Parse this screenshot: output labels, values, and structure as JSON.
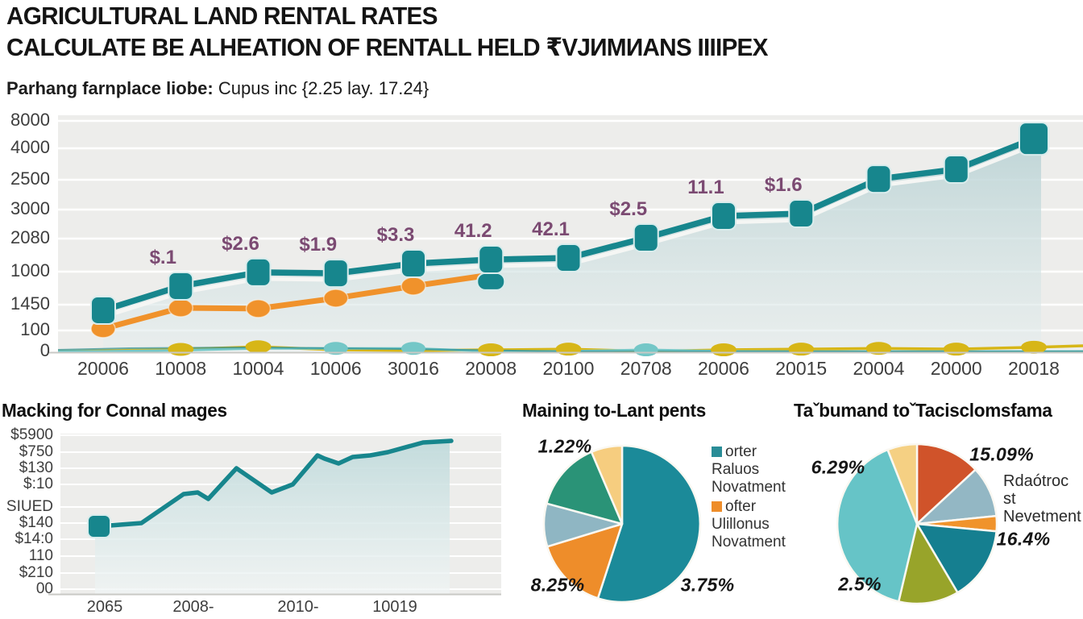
{
  "header": {
    "title_line1": "AGRICULTURAL LAND RENTAL RATES",
    "title_line2": "CALCULATE BE ALHEATION OF RENTALL HELD ₹VJИMИANS IIIIPEX",
    "subtitle_label": "Parhang farnplace liobe:",
    "subtitle_value": " Cupus inc {2.25 lay. 17.24}"
  },
  "colors": {
    "teal": "#17868d",
    "orange": "#f0922b",
    "yellow": "#d7b617",
    "light_teal": "#74c7c7",
    "purple_label": "#7b4a72",
    "plot_bg": "#ededeb",
    "grid": "#ffffff",
    "axis_text": "#3e3e3e"
  },
  "chart_data": [
    {
      "id": "rental_line",
      "type": "line",
      "title": "",
      "categories": [
        "20006",
        "10008",
        "10004",
        "10006",
        "30016",
        "20008",
        "20100",
        "20708",
        "20006",
        "20015",
        "20004",
        "20000",
        "20018"
      ],
      "y_ticks": [
        "8000",
        "4000",
        "2500",
        "3000",
        "2080",
        "1000",
        "1450",
        "100",
        "0"
      ],
      "ylim": [
        0,
        100
      ],
      "grid": true,
      "legend_position": "none",
      "series": [
        {
          "name": "teal-main",
          "color": "#17868d",
          "marker": "square",
          "values": [
            17.7,
            27.9,
            33.7,
            33.3,
            37.4,
            39.1,
            39.8,
            48.3,
            57.5,
            58.5,
            73.1,
            77.2,
            90.1
          ]
        },
        {
          "name": "orange",
          "color": "#f0922b",
          "marker": "oval",
          "values": [
            9.9,
            18.7,
            18.4,
            22.8,
            27.9,
            32.7
          ]
        },
        {
          "name": "yellow",
          "color": "#d7b617",
          "marker": "oval",
          "values": [
            0.6,
            1.2,
            2.3,
            1.0,
            0.7,
            1.0,
            1.3,
            0.4,
            1.0,
            1.3,
            1.6,
            1.3,
            2.1
          ],
          "marker_cols": [
            1,
            2,
            5,
            6,
            8,
            9,
            10,
            11,
            12
          ]
        },
        {
          "name": "light-teal",
          "color": "#74c7c7",
          "marker": "oval",
          "values": [
            0.4,
            0.8,
            1.6,
            1.6,
            1.6,
            0.4,
            0.4,
            1.0,
            0.4,
            0.3,
            0.3,
            0.3,
            0.3
          ],
          "marker_cols": [
            3,
            4,
            7
          ]
        }
      ],
      "point_labels": [
        {
          "index": 1,
          "text": "$.1"
        },
        {
          "index": 2,
          "text": "$2.6"
        },
        {
          "index": 3,
          "text": "$1.9"
        },
        {
          "index": 4,
          "text": "$3.3"
        },
        {
          "index": 5,
          "text": "41.2"
        },
        {
          "index": 6,
          "text": "42.1"
        },
        {
          "index": 7,
          "text": "$2.5"
        },
        {
          "index": 8,
          "text": "11.1"
        },
        {
          "index": 9,
          "text": "$1.6"
        }
      ]
    },
    {
      "id": "connal_area",
      "type": "area",
      "title": "Macking for Connal mages",
      "y_ticks": [
        "$5900",
        "$750",
        "$130",
        "$:10",
        "SIUED",
        "$140",
        "$14:0",
        "110",
        "$210",
        "00"
      ],
      "x_ticks": [
        "2065",
        "2008-",
        "2010-",
        "10019"
      ],
      "ylim": [
        0,
        100
      ],
      "grid": true,
      "color": "#17868d",
      "values": [
        42,
        44,
        62,
        63,
        59,
        78,
        63,
        68,
        86,
        84,
        81,
        85,
        86,
        88,
        94,
        95
      ]
    },
    {
      "id": "lant_pie",
      "type": "pie",
      "title": "Maining to-Lant pents",
      "slices": [
        {
          "name": "teal",
          "pct": 55.0,
          "color": "#1b8a99"
        },
        {
          "name": "orange",
          "pct": 15.3,
          "color": "#ee8d2a"
        },
        {
          "name": "blue-gray",
          "pct": 8.9,
          "color": "#8fb6c3"
        },
        {
          "name": "green",
          "pct": 14.4,
          "color": "#2a9377"
        },
        {
          "name": "cream",
          "pct": 6.4,
          "color": "#f6cd7f"
        }
      ],
      "labels": [
        {
          "text": "1.22%"
        },
        {
          "text": "8.25%"
        },
        {
          "text": "3.75%"
        }
      ],
      "legend": [
        {
          "color": "#2a8d97",
          "lines": [
            "orter",
            "Raluos",
            "Novatment"
          ]
        },
        {
          "color": "#ee8d2a",
          "lines": [
            "ofter",
            "Ulillonus",
            "Novatment"
          ]
        }
      ]
    },
    {
      "id": "tacis_pie",
      "type": "pie",
      "title": "Taˇbumand toˇTacisclomsfama",
      "slices": [
        {
          "name": "vermilion",
          "pct": 13.1,
          "color": "#d0532a"
        },
        {
          "name": "blue-gray",
          "pct": 10.3,
          "color": "#93b7c4"
        },
        {
          "name": "orange-small",
          "pct": 3.1,
          "color": "#f0932b"
        },
        {
          "name": "dark-teal",
          "pct": 15.0,
          "color": "#157f90"
        },
        {
          "name": "olive",
          "pct": 12.2,
          "color": "#98a42a"
        },
        {
          "name": "cyan",
          "pct": 40.3,
          "color": "#66c4c7"
        },
        {
          "name": "cream",
          "pct": 6.0,
          "color": "#f5d083"
        }
      ],
      "labels": [
        {
          "text": "15.09%"
        },
        {
          "text": "6.29%"
        },
        {
          "text": "16.4%"
        },
        {
          "text": "2.5%"
        }
      ],
      "annotation": [
        "Rdaótroc st",
        "Nevetment"
      ]
    }
  ]
}
